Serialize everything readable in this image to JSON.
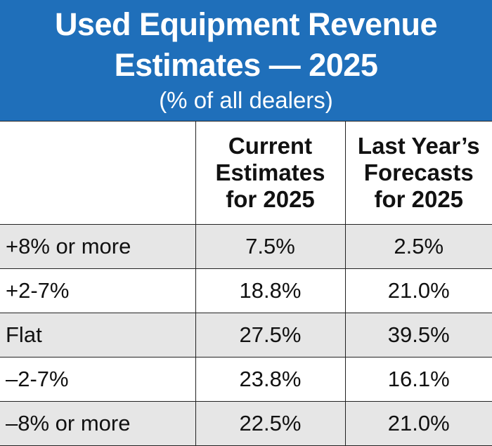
{
  "header": {
    "title_line1": "Used Equipment Revenue",
    "title_line2": "Estimates — 2025",
    "subtitle": "(% of all dealers)"
  },
  "chart_data": {
    "type": "table",
    "title": "Used Equipment Revenue Estimates — 2025",
    "subtitle": "(% of all dealers)",
    "columns": [
      "",
      "Current Estimates for 2025",
      "Last Year’s Forecasts for 2025"
    ],
    "column_header_lines": [
      [],
      [
        "Current",
        "Estimates",
        "for 2025"
      ],
      [
        "Last Year’s",
        "Forecasts",
        "for 2025"
      ]
    ],
    "rows": [
      [
        "+8% or more",
        "7.5%",
        "2.5%"
      ],
      [
        "+2-7%",
        "18.8%",
        "21.0%"
      ],
      [
        "Flat",
        "27.5%",
        "39.5%"
      ],
      [
        "–2-7%",
        "23.8%",
        "16.1%"
      ],
      [
        "–8% or more",
        "22.5%",
        "21.0%"
      ]
    ],
    "categories": [
      "+8% or more",
      "+2-7%",
      "Flat",
      "–2-7%",
      "–8% or more"
    ],
    "series": [
      {
        "name": "Current Estimates for 2025",
        "values": [
          7.5,
          18.8,
          27.5,
          23.8,
          22.5
        ]
      },
      {
        "name": "Last Year’s Forecasts for 2025",
        "values": [
          2.5,
          21.0,
          39.5,
          16.1,
          21.0
        ]
      }
    ]
  },
  "colors": {
    "header_bg": "#1f6fba",
    "header_text": "#ffffff",
    "row_shade": "#e6e6e6"
  }
}
